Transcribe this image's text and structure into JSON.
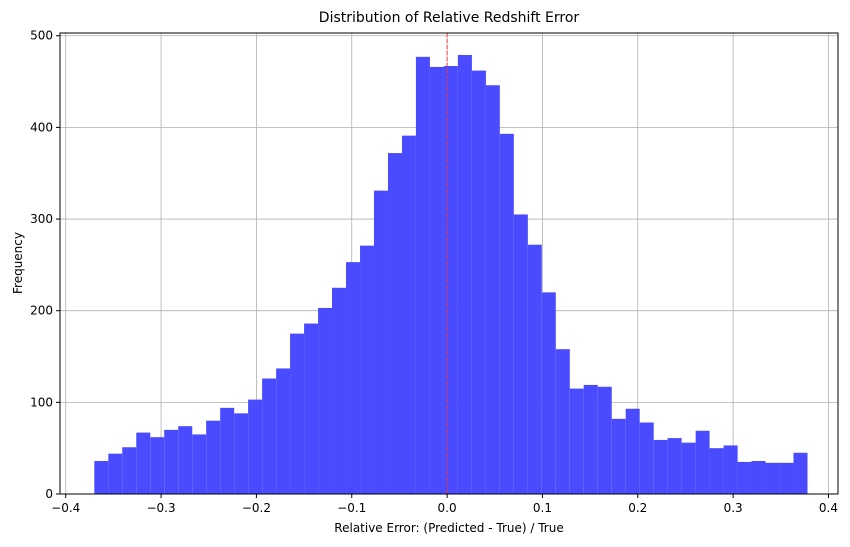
{
  "chart_data": {
    "type": "histogram",
    "title": "Distribution of Relative Redshift Error",
    "xlabel": "Relative Error: (Predicted - True) / True",
    "ylabel": "Frequency",
    "bins": [
      -0.37,
      -0.3553,
      -0.3407,
      -0.326,
      -0.3113,
      -0.2967,
      -0.282,
      -0.2673,
      -0.2527,
      -0.238,
      -0.2233,
      -0.2087,
      -0.194,
      -0.1793,
      -0.1647,
      -0.15,
      -0.1353,
      -0.1207,
      -0.106,
      -0.0913,
      -0.0767,
      -0.062,
      -0.0473,
      -0.0327,
      -0.018,
      -0.0033,
      0.0113,
      0.026,
      0.0407,
      0.0553,
      0.07,
      0.0847,
      0.0993,
      0.114,
      0.1287,
      0.1433,
      0.158,
      0.1727,
      0.1873,
      0.202,
      0.2167,
      0.2313,
      0.246,
      0.2607,
      0.2753,
      0.29,
      0.3047,
      0.3193,
      0.334,
      0.3487,
      0.3633,
      0.378
    ],
    "values": [
      36,
      44,
      51,
      67,
      62,
      70,
      74,
      65,
      80,
      94,
      88,
      103,
      126,
      137,
      175,
      186,
      203,
      225,
      253,
      271,
      331,
      372,
      391,
      477,
      466,
      467,
      479,
      462,
      446,
      393,
      305,
      272,
      220,
      158,
      115,
      119,
      117,
      82,
      93,
      78,
      59,
      61,
      56,
      69,
      50,
      53,
      35,
      36,
      34,
      34,
      45
    ],
    "color": "#4a4afe",
    "vline": 0,
    "vline_color": "#ff3333",
    "xlim": [
      -0.406,
      0.41
    ],
    "ylim": [
      0,
      503
    ],
    "xticks": [
      {
        "value": -0.4,
        "label": "−0.4"
      },
      {
        "value": -0.3,
        "label": "−0.3"
      },
      {
        "value": -0.2,
        "label": "−0.2"
      },
      {
        "value": -0.1,
        "label": "−0.1"
      },
      {
        "value": 0,
        "label": "0.0"
      },
      0.1,
      0.2,
      0.3,
      0.4
    ],
    "yticks": [
      0,
      100,
      200,
      300,
      400,
      500
    ],
    "grid": true
  }
}
